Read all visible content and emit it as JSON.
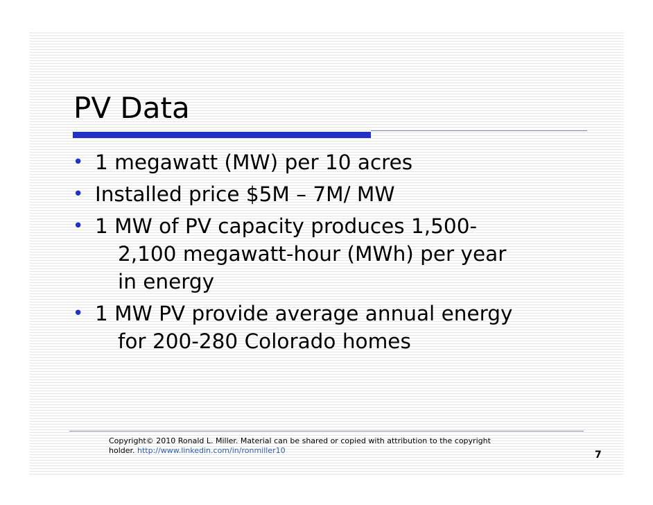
{
  "slide": {
    "title": "PV Data",
    "bullets": [
      {
        "lines": [
          "1 megawatt (MW) per 10 acres"
        ]
      },
      {
        "lines": [
          "Installed price $5M – 7M/ MW"
        ]
      },
      {
        "lines": [
          "1 MW of PV capacity produces 1,500-",
          "2,100 megawatt-hour (MWh) per year",
          "in energy"
        ]
      },
      {
        "lines": [
          "1 MW PV provide average annual energy",
          "for 200-280 Colorado homes"
        ]
      }
    ],
    "bullet_glyph": "•",
    "footer": {
      "line1": "Copyright© 2010 Ronald L. Miller.   Material can be shared or copied with attribution to the copyright",
      "line2_prefix": "holder. ",
      "link_text": "http://www.linkedin.com/in/ronmiller10"
    },
    "page_number": "7",
    "colors": {
      "accent": "#2030c8",
      "rule": "#7a86c8",
      "link": "#2a5db0"
    }
  }
}
